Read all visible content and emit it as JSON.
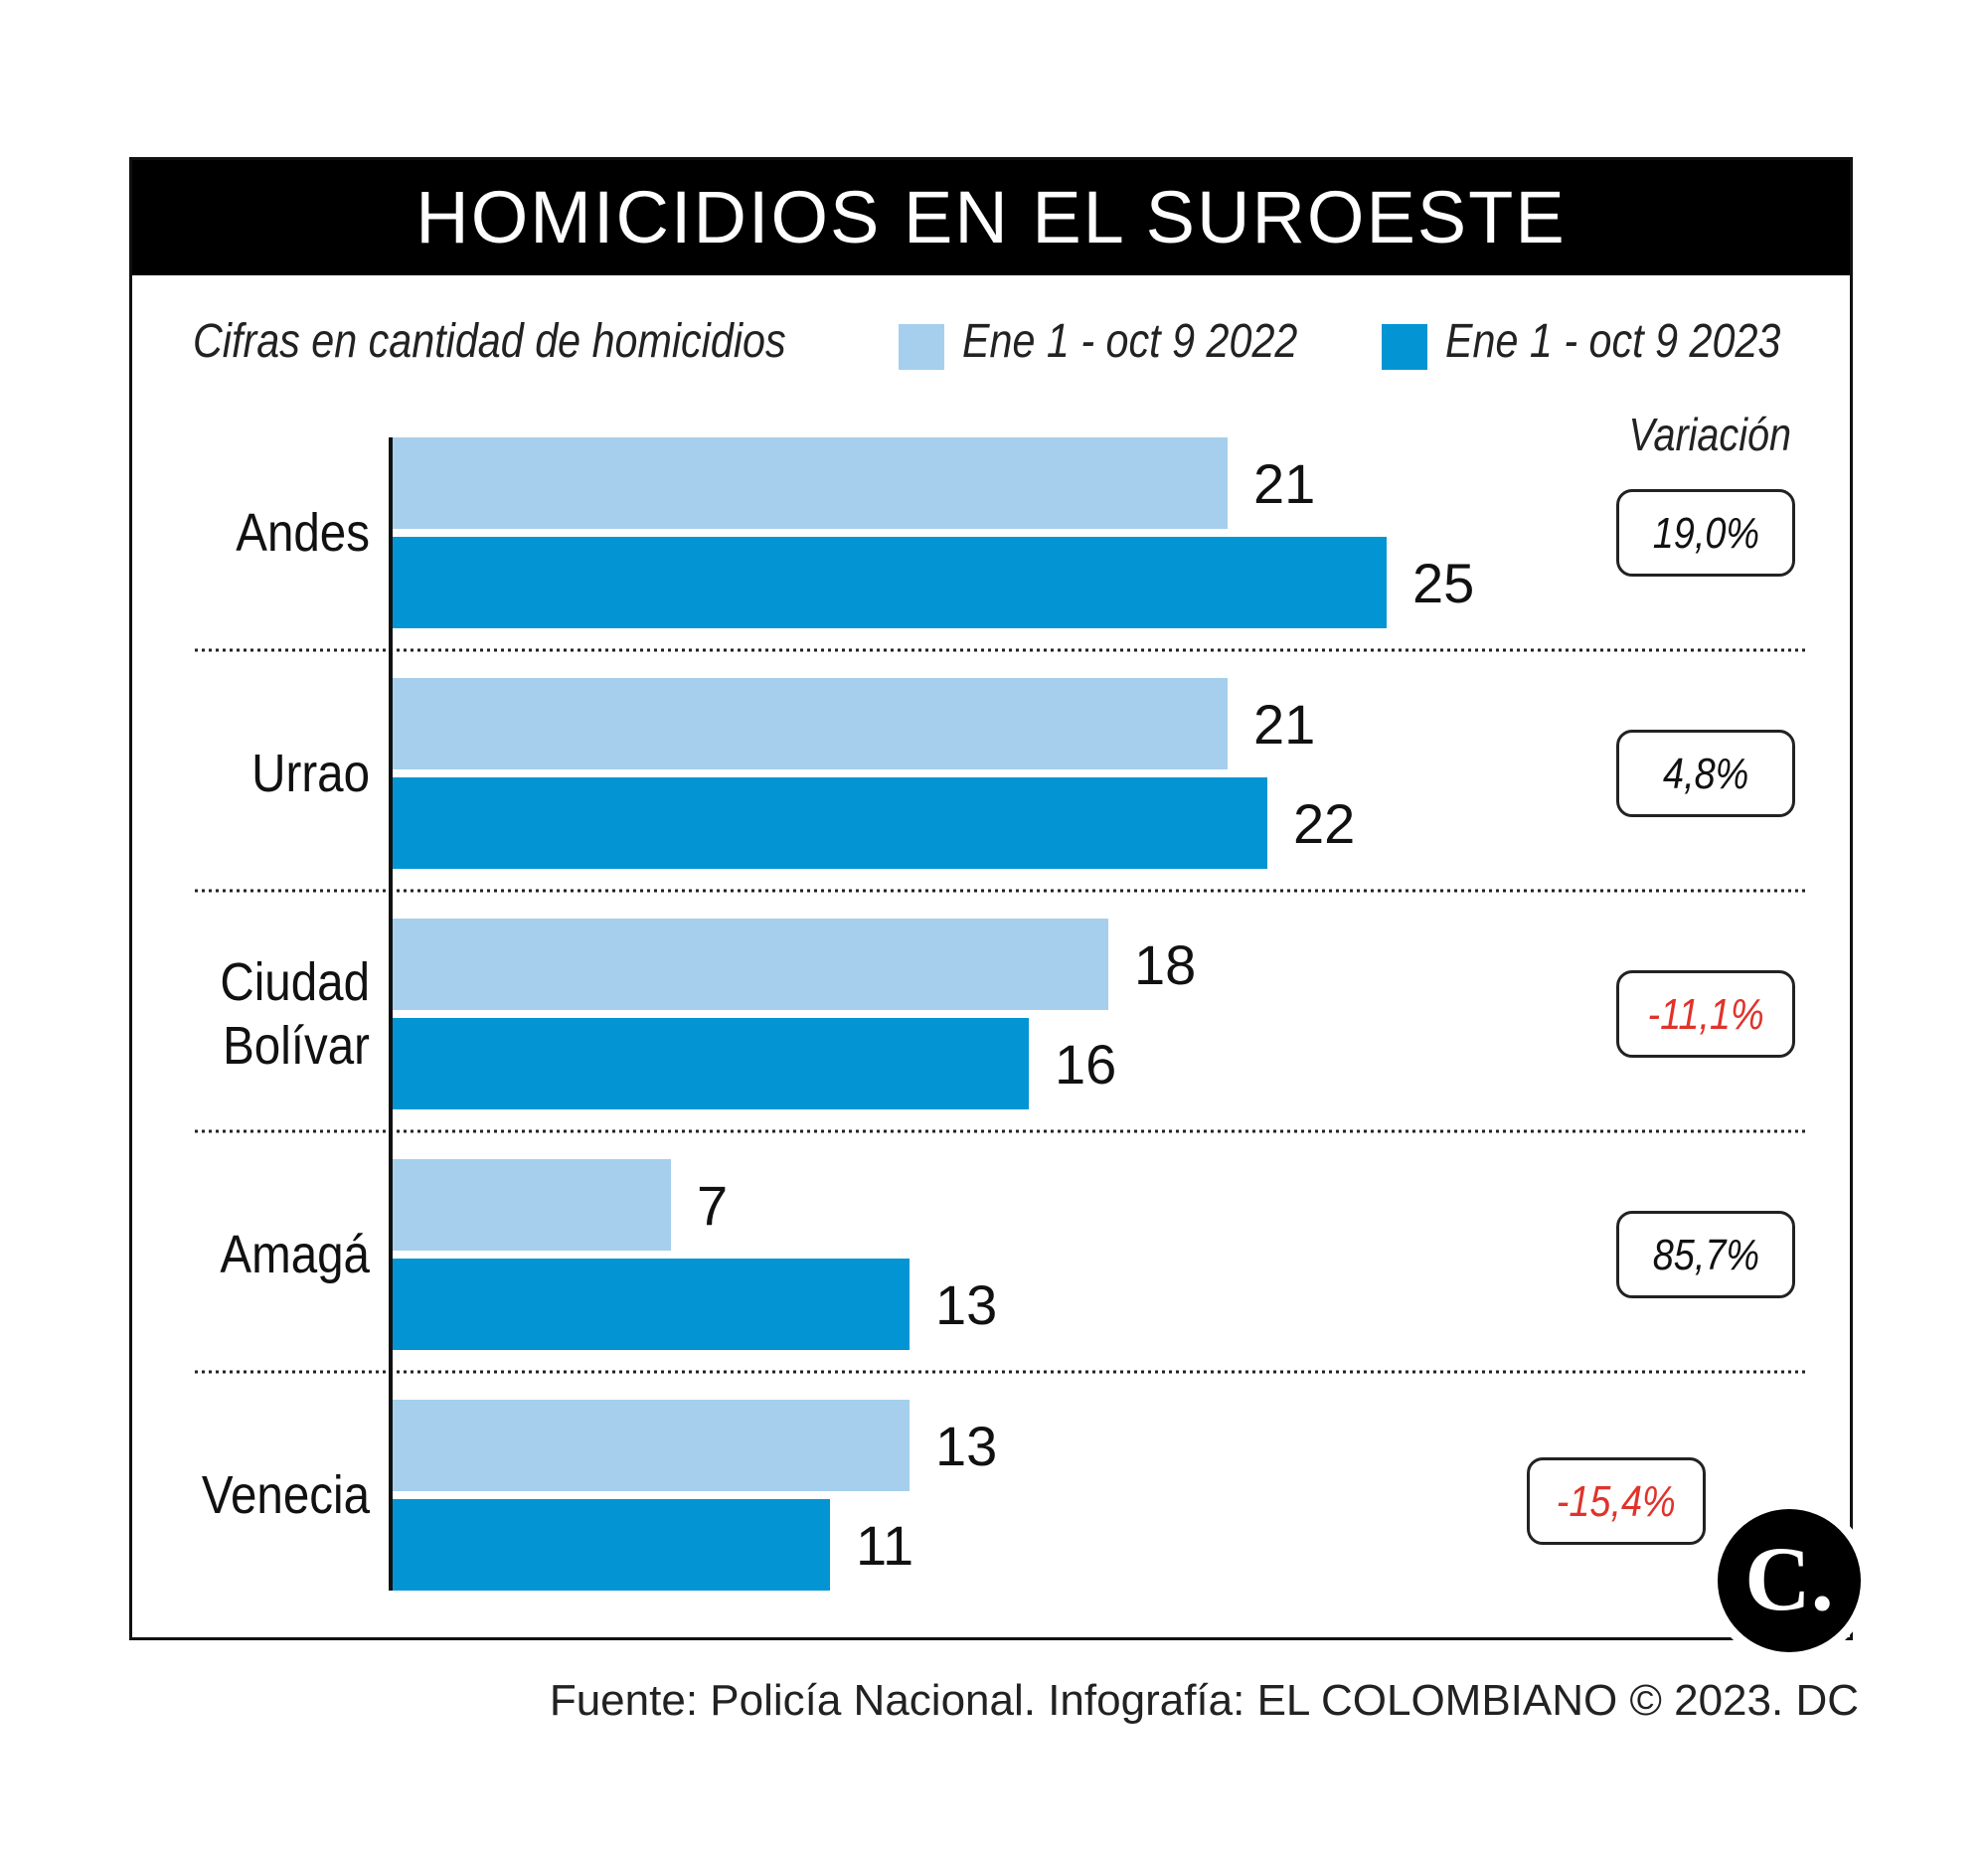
{
  "header": {
    "title": "HOMICIDIOS EN EL SUROESTE",
    "units_note": "Cifras en cantidad de homicidios"
  },
  "legend": [
    {
      "label": "Ene 1 - oct 9 2022",
      "color": "#a5cfec"
    },
    {
      "label": "Ene 1 - oct 9 2023",
      "color": "#0395d3"
    }
  ],
  "variation_header": "Variación",
  "chart_data": {
    "type": "bar",
    "orientation": "horizontal",
    "categories": [
      "Andes",
      "Urrao",
      "Ciudad Bolívar",
      "Amagá",
      "Venecia"
    ],
    "series": [
      {
        "name": "Ene 1 - oct 9 2022",
        "values": [
          21,
          21,
          18,
          7,
          13
        ],
        "color": "#a5cfec"
      },
      {
        "name": "Ene 1 - oct 9 2023",
        "values": [
          25,
          22,
          16,
          13,
          11
        ],
        "color": "#0395d3"
      }
    ],
    "variation": [
      "19,0%",
      "4,8%",
      "-11,1%",
      "85,7%",
      "-15,4%"
    ],
    "negative_color": "#e0332b",
    "grid": false
  },
  "logo": {
    "text": "C."
  },
  "footer": {
    "source": "Fuente: Policía Nacional. Infografía: EL COLOMBIANO © 2023. DC"
  }
}
